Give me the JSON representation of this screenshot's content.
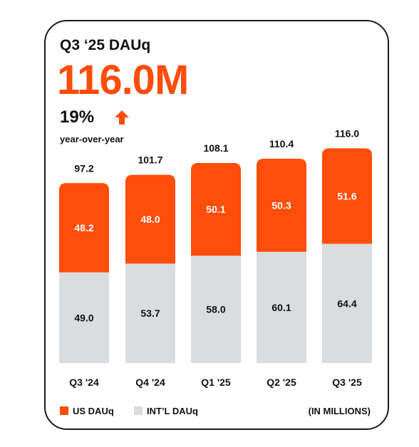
{
  "card": {
    "title": "Q3 ‘25 DAUq",
    "headline_value": "116.0M",
    "growth_value": "19%",
    "growth_icon": "up-arrow-icon",
    "growth_label": "year-over-year",
    "units_note": "(IN MILLIONS)"
  },
  "colors": {
    "accent": "#FF4D0A",
    "us": "#FF4D0A",
    "intl": "#D9DDDF",
    "text": "#111111",
    "border": "#1a1a1a"
  },
  "chart_data": {
    "type": "bar",
    "stacked": true,
    "categories": [
      "Q3 '24",
      "Q4 '24",
      "Q1 '25",
      "Q2 '25",
      "Q3 '25"
    ],
    "series": [
      {
        "name": "INT’L DAUq",
        "values": [
          49.0,
          53.7,
          58.0,
          60.1,
          64.4
        ],
        "color": "#D9DDDF"
      },
      {
        "name": "US DAUq",
        "values": [
          48.2,
          48.0,
          50.1,
          50.3,
          51.6
        ],
        "color": "#FF4D0A"
      }
    ],
    "totals": [
      "97.2",
      "101.7",
      "108.1",
      "110.4",
      "116.0"
    ],
    "series_labels": {
      "intl": [
        "49.0",
        "53.7",
        "58.0",
        "60.1",
        "64.4"
      ],
      "us": [
        "48.2",
        "48.0",
        "50.1",
        "50.3",
        "51.6"
      ]
    },
    "legend": [
      "US DAUq",
      "INT’L DAUq"
    ],
    "legend_position": "bottom-left",
    "grid": false
  }
}
